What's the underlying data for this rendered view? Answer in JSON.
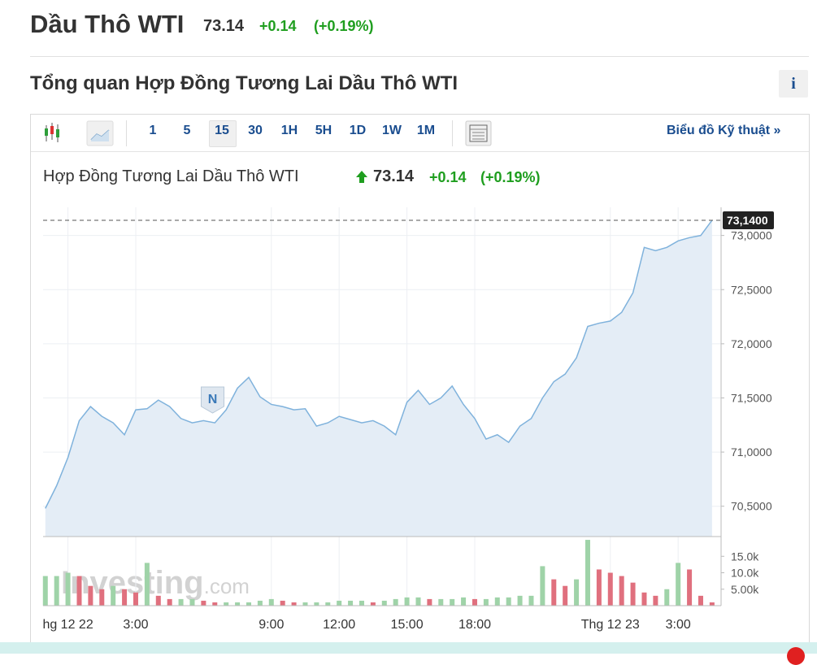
{
  "header": {
    "title": "Dầu Thô WTI",
    "price": "73.14",
    "change": "+0.14",
    "change_pct": "(+0.19%)"
  },
  "section_title": "Tổng quan Hợp Đồng Tương Lai Dầu Thô WTI",
  "info_button": "i",
  "toolbar": {
    "intervals": [
      "1",
      "5",
      "15",
      "30",
      "1H",
      "5H",
      "1D",
      "1W",
      "1M"
    ],
    "active_interval_index": 2,
    "technical_link": "Biểu đồ Kỹ thuật »"
  },
  "chart_data": {
    "type": "line",
    "title": "Hợp Đồng Tương Lai Dầu Thô WTI",
    "price": "73.14",
    "change": "+0.14",
    "change_pct": "(+0.19%)",
    "news_marker": "N",
    "watermark": [
      "Investing",
      ".com"
    ],
    "last_price": {
      "value": 73.14,
      "label": "73,1400"
    },
    "x": [
      -1,
      -0.5,
      0,
      0.5,
      1,
      1.5,
      2,
      2.5,
      3,
      3.5,
      4,
      4.5,
      5,
      5.5,
      6,
      6.5,
      7,
      7.5,
      8,
      8.5,
      9,
      9.5,
      10,
      10.5,
      11,
      11.5,
      12,
      12.5,
      13,
      13.5,
      14,
      14.5,
      15,
      15.5,
      16,
      16.5,
      17,
      17.5,
      18,
      18.5,
      19,
      19.5,
      20,
      20.5,
      21,
      21.5,
      22,
      22.5,
      23,
      23.5,
      24,
      24.5,
      25,
      25.5,
      26,
      26.5,
      27,
      27.5,
      28,
      28.5
    ],
    "series": [
      {
        "color": "#7fb2dc",
        "values": [
          70.48,
          70.69,
          70.95,
          71.29,
          71.42,
          71.33,
          71.27,
          71.16,
          71.39,
          71.4,
          71.48,
          71.42,
          71.31,
          71.27,
          71.29,
          71.27,
          71.39,
          71.59,
          71.69,
          71.51,
          71.44,
          71.42,
          71.39,
          71.4,
          71.24,
          71.27,
          71.33,
          71.3,
          71.27,
          71.29,
          71.24,
          71.16,
          71.46,
          71.57,
          71.44,
          71.5,
          71.61,
          71.44,
          71.31,
          71.12,
          71.16,
          71.09,
          71.24,
          71.31,
          71.5,
          71.65,
          71.72,
          71.87,
          72.16,
          72.19,
          72.21,
          72.29,
          72.47,
          72.89,
          72.86,
          72.89,
          72.95,
          72.98,
          73.0,
          73.14
        ]
      },
      {
        "axis": "y2",
        "up_color": "#9fd3a8",
        "down_color": "#e0707e",
        "values": [
          9000,
          9000,
          10000,
          9000,
          6000,
          5000,
          6000,
          5000,
          4000,
          13000,
          3000,
          2000,
          2000,
          2000,
          1500,
          1000,
          1000,
          1000,
          1000,
          1500,
          2000,
          1500,
          1000,
          1000,
          1000,
          1000,
          1500,
          1500,
          1500,
          1000,
          1500,
          2000,
          2500,
          2500,
          2000,
          2000,
          2000,
          2500,
          2000,
          2000,
          2500,
          2500,
          3000,
          3000,
          12000,
          8000,
          6000,
          8000,
          20000,
          11000,
          10000,
          9000,
          7000,
          4000,
          3000,
          5000,
          13000,
          11000,
          3000,
          1000
        ]
      }
    ],
    "xlim": [
      -1.1,
      28.9
    ],
    "xticks": [
      {
        "value": 0,
        "label": "hg 12 22"
      },
      {
        "value": 3,
        "label": "3:00"
      },
      {
        "value": 9,
        "label": "9:00"
      },
      {
        "value": 12,
        "label": "12:00"
      },
      {
        "value": 15,
        "label": "15:00"
      },
      {
        "value": 18,
        "label": "18:00"
      },
      {
        "value": 24,
        "label": "Thg 12 23"
      },
      {
        "value": 27,
        "label": "3:00"
      }
    ],
    "ylim": [
      70.22,
      73.26
    ],
    "yticks": [
      {
        "value": 70.5,
        "label": "70,5000"
      },
      {
        "value": 71,
        "label": "71,0000"
      },
      {
        "value": 71.5,
        "label": "71,5000"
      },
      {
        "value": 72,
        "label": "72,0000"
      },
      {
        "value": 72.5,
        "label": "72,5000"
      },
      {
        "value": 73,
        "label": "73,0000"
      }
    ],
    "y2lim": [
      0,
      21000
    ],
    "y2ticks": [
      {
        "value": 5000,
        "label": "5.00k"
      },
      {
        "value": 10000,
        "label": "10.0k"
      },
      {
        "value": 15000,
        "label": "15.0k"
      }
    ],
    "grid": true
  }
}
